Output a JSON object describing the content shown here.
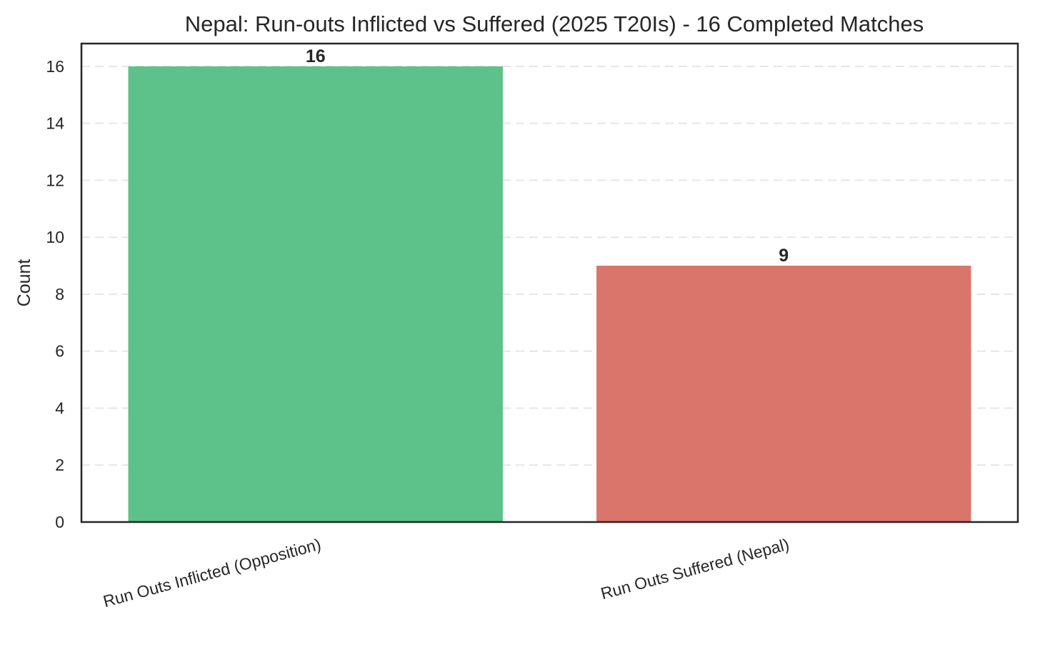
{
  "chart_data": {
    "type": "bar",
    "title": "Nepal: Run-outs Inflicted vs Suffered (2025 T20Is) - 16 Completed Matches",
    "xlabel": "",
    "ylabel": "Count",
    "categories": [
      "Run Outs Inflicted (Opposition)",
      "Run Outs Suffered (Nepal)"
    ],
    "values": [
      16,
      9
    ],
    "value_labels": [
      "16",
      "9"
    ],
    "colors": [
      "#5cc28a",
      "#d9756b"
    ],
    "ylim": [
      0,
      16.8
    ],
    "yticks": [
      0,
      2,
      4,
      6,
      8,
      10,
      12,
      14,
      16
    ],
    "grid": "y-dashed",
    "legend": "none",
    "xtick_rotation_deg": -15
  }
}
